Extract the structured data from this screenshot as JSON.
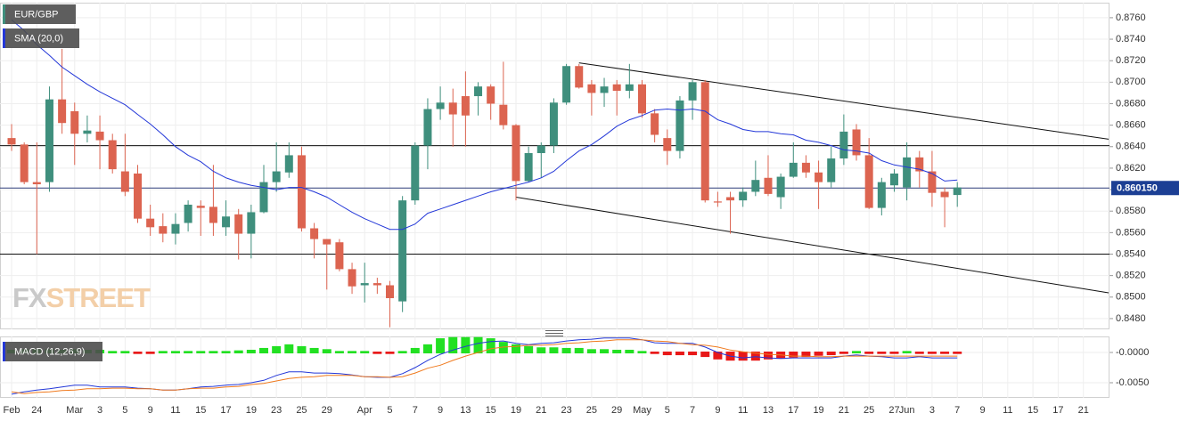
{
  "chart_data": [
    {
      "type": "candlestick",
      "title": "EUR/GBP",
      "categories": [
        "Feb",
        null,
        "24",
        null,
        null,
        "Mar",
        null,
        "3",
        null,
        "5",
        null,
        "9",
        null,
        "11",
        null,
        "15",
        null,
        "17",
        null,
        "19",
        null,
        "23",
        null,
        "25",
        null,
        "29",
        null,
        null,
        "Apr",
        null,
        "5",
        null,
        "7",
        null,
        "9",
        null,
        "13",
        null,
        "15",
        null,
        "19",
        null,
        "21",
        null,
        "23",
        null,
        "25",
        null,
        "29",
        null,
        "May",
        null,
        "5",
        null,
        "7",
        null,
        "9",
        null,
        "11",
        null,
        "13",
        null,
        "17",
        null,
        "19",
        null,
        "21",
        null,
        "25",
        null,
        "27",
        "Jun",
        null,
        "3",
        null,
        "7",
        null,
        "9",
        null,
        "11",
        null,
        "15",
        null,
        "17",
        null,
        "21"
      ],
      "xlim": [
        -0.92,
        87.07
      ],
      "open": [
        0.8648,
        0.8642,
        0.8607,
        0.8607,
        0.8684,
        0.8673,
        0.8652,
        0.8654,
        0.8646,
        0.8617,
        0.8615,
        0.8573,
        0.8566,
        0.8559,
        0.8569,
        0.8585,
        0.8584,
        0.8565,
        0.8577,
        0.8559,
        0.8579,
        0.8607,
        0.8616,
        0.8632,
        0.8564,
        0.8554,
        0.8551,
        0.8526,
        0.8511,
        0.8513,
        0.8511,
        0.8496,
        0.859,
        0.8641,
        0.8675,
        0.8681,
        0.8687,
        0.8687,
        0.8696,
        0.8679,
        0.866,
        0.8608,
        0.8634,
        0.8641,
        0.8681,
        0.8715,
        0.8698,
        0.869,
        0.8698,
        0.8692,
        0.8698,
        0.8671,
        0.8648,
        0.8636,
        0.8683,
        0.87,
        0.8589,
        0.8593,
        0.859,
        0.8598,
        0.8611,
        0.8593,
        0.8612,
        0.8625,
        0.8616,
        0.8607,
        0.8629,
        0.8656,
        0.8632,
        0.8583,
        0.8604,
        0.8602,
        0.863,
        0.8617,
        0.8598,
        0.8595,
        null,
        null,
        null,
        null,
        null,
        null,
        null,
        null,
        null,
        null
      ],
      "high": [
        0.8661,
        0.8644,
        0.8644,
        0.8696,
        0.8731,
        0.8681,
        0.8669,
        0.8669,
        0.8652,
        0.8652,
        0.8623,
        0.8586,
        0.8578,
        0.8578,
        0.859,
        0.859,
        0.8623,
        0.859,
        0.8582,
        0.8586,
        0.8623,
        0.8644,
        0.8644,
        0.864,
        0.8569,
        0.8554,
        0.8554,
        0.8532,
        0.8532,
        0.8518,
        0.8515,
        0.8594,
        0.8644,
        0.8685,
        0.8696,
        0.8694,
        0.871,
        0.87,
        0.8698,
        0.8719,
        0.8661,
        0.864,
        0.8644,
        0.8685,
        0.8717,
        0.8717,
        0.8702,
        0.8704,
        0.8702,
        0.8717,
        0.8702,
        0.8675,
        0.8656,
        0.8687,
        0.8702,
        0.8702,
        0.8598,
        0.8598,
        0.8602,
        0.8627,
        0.8632,
        0.8615,
        0.8644,
        0.8632,
        0.8627,
        0.864,
        0.867,
        0.8661,
        0.8648,
        0.8611,
        0.8619,
        0.8644,
        0.8636,
        0.8636,
        0.8602,
        0.8607,
        null,
        null,
        null,
        null,
        null,
        null,
        null,
        null,
        null,
        null
      ],
      "low": [
        0.8636,
        0.8605,
        0.854,
        0.8598,
        0.8652,
        0.8623,
        0.8644,
        0.8619,
        0.8615,
        0.8594,
        0.8569,
        0.8557,
        0.8551,
        0.8549,
        0.8561,
        0.8557,
        0.8557,
        0.8557,
        0.8535,
        0.8536,
        0.8578,
        0.8598,
        0.8611,
        0.8561,
        0.8536,
        0.8507,
        0.8524,
        0.8503,
        0.8495,
        0.8503,
        0.8472,
        0.8486,
        0.8586,
        0.8619,
        0.8665,
        0.864,
        0.864,
        0.8669,
        0.8665,
        0.8656,
        0.859,
        0.8607,
        0.8611,
        0.8634,
        0.8679,
        0.8694,
        0.8669,
        0.8677,
        0.8669,
        0.8685,
        0.8667,
        0.8644,
        0.8623,
        0.8629,
        0.8665,
        0.8588,
        0.8584,
        0.8559,
        0.8584,
        0.8594,
        0.8594,
        0.8582,
        0.8611,
        0.8611,
        0.8582,
        0.8602,
        0.8623,
        0.8627,
        0.8582,
        0.8576,
        0.8598,
        0.859,
        0.8602,
        0.8584,
        0.8565,
        0.8584,
        null,
        null,
        null,
        null,
        null,
        null,
        null,
        null,
        null,
        null
      ],
      "close": [
        0.8642,
        0.8607,
        0.8605,
        0.8684,
        0.8662,
        0.8652,
        0.8655,
        0.8646,
        0.8619,
        0.8598,
        0.8573,
        0.8565,
        0.8559,
        0.8568,
        0.8586,
        0.8583,
        0.8569,
        0.8575,
        0.8559,
        0.8579,
        0.8607,
        0.8617,
        0.8632,
        0.8564,
        0.8554,
        0.8549,
        0.8526,
        0.851,
        0.8513,
        0.8511,
        0.8499,
        0.859,
        0.8641,
        0.8675,
        0.8681,
        0.867,
        0.8669,
        0.8696,
        0.868,
        0.866,
        0.8608,
        0.8634,
        0.8641,
        0.8681,
        0.8715,
        0.8695,
        0.869,
        0.8696,
        0.8692,
        0.8698,
        0.8671,
        0.8651,
        0.8636,
        0.8683,
        0.87,
        0.859,
        0.8588,
        0.859,
        0.8598,
        0.8609,
        0.8596,
        0.8612,
        0.8625,
        0.8616,
        0.8607,
        0.8629,
        0.8654,
        0.8632,
        0.8583,
        0.8607,
        0.8615,
        0.863,
        0.8617,
        0.8597,
        0.8593,
        0.8602,
        null,
        null,
        null,
        null,
        null,
        null,
        null,
        null,
        null,
        null
      ],
      "up_color": "#3f8f7d",
      "down_color": "#dc6450",
      "series": [
        {
          "name": "SMA (20,0)",
          "color": "#2438d8",
          "values": [
            0.8758,
            0.8748,
            0.8735,
            0.8725,
            0.8714,
            0.8706,
            0.8698,
            0.8691,
            0.8685,
            0.8679,
            0.867,
            0.8661,
            0.8651,
            0.864,
            0.8632,
            0.8626,
            0.8617,
            0.8611,
            0.8607,
            0.8604,
            0.8602,
            0.86,
            0.8602,
            0.8602,
            0.8598,
            0.8593,
            0.8586,
            0.8579,
            0.8573,
            0.8568,
            0.8563,
            0.8563,
            0.8568,
            0.8578,
            0.8582,
            0.8586,
            0.859,
            0.8594,
            0.8598,
            0.8601,
            0.8604,
            0.8607,
            0.8611,
            0.8617,
            0.8627,
            0.8636,
            0.8642,
            0.865,
            0.8659,
            0.8665,
            0.8669,
            0.8674,
            0.8675,
            0.8674,
            0.8675,
            0.8673,
            0.8665,
            0.8661,
            0.8656,
            0.8654,
            0.8654,
            0.8652,
            0.8651,
            0.8646,
            0.8644,
            0.8641,
            0.8637,
            0.8636,
            0.8634,
            0.8627,
            0.8623,
            0.8621,
            0.8619,
            0.8615,
            0.8608,
            0.8609,
            null,
            null,
            null,
            null,
            null,
            null,
            null,
            null,
            null,
            null
          ]
        }
      ],
      "ylim": [
        0.847,
        0.8774
      ],
      "yticks": [
        {
          "value": 0.876,
          "label": "0.8760"
        },
        {
          "value": 0.874,
          "label": "0.8740"
        },
        {
          "value": 0.872,
          "label": "0.8720"
        },
        {
          "value": 0.87,
          "label": "0.8700"
        },
        {
          "value": 0.868,
          "label": "0.8680"
        },
        {
          "value": 0.866,
          "label": "0.8660"
        },
        {
          "value": 0.864,
          "label": "0.8640"
        },
        {
          "value": 0.862,
          "label": "0.8620"
        },
        {
          "value": 0.86,
          "label": "0.8600"
        },
        {
          "value": 0.858,
          "label": "0.8580"
        },
        {
          "value": 0.856,
          "label": "0.8560"
        },
        {
          "value": 0.854,
          "label": "0.8540"
        },
        {
          "value": 0.852,
          "label": "0.8520"
        },
        {
          "value": 0.85,
          "label": "0.8500"
        },
        {
          "value": 0.848,
          "label": "0.8480"
        }
      ],
      "grid": true,
      "levels": [
        0.8641,
        0.854
      ],
      "trendlines": [
        {
          "x": [
            45,
            87
          ],
          "y": [
            0.8718,
            0.8647
          ]
        },
        {
          "x": [
            40,
            87
          ],
          "y": [
            0.8593,
            0.8504
          ]
        }
      ],
      "last_price": {
        "value": 0.86015,
        "label": "0.860150"
      },
      "watermark": [
        "FX",
        "STREET"
      ]
    },
    {
      "type": "macd",
      "title": "MACD (12,26,9)",
      "series": [
        {
          "color": "#2438d8",
          "values": [
            -0.0069,
            -0.0065,
            -0.0062,
            -0.006,
            -0.0057,
            -0.0054,
            -0.0054,
            -0.0057,
            -0.0057,
            -0.0057,
            -0.0059,
            -0.006,
            -0.0062,
            -0.0062,
            -0.006,
            -0.0057,
            -0.0056,
            -0.0054,
            -0.0053,
            -0.005,
            -0.0046,
            -0.0038,
            -0.0032,
            -0.0032,
            -0.0034,
            -0.0034,
            -0.0035,
            -0.0037,
            -0.004,
            -0.0041,
            -0.0041,
            -0.0035,
            -0.0025,
            -0.0013,
            -0.0003,
            0.0004,
            0.001,
            0.0015,
            0.0018,
            0.0019,
            0.0015,
            0.0013,
            0.0015,
            0.0016,
            0.0019,
            0.0021,
            0.0022,
            0.0024,
            0.0024,
            0.0024,
            0.0021,
            0.0016,
            0.0015,
            0.0015,
            0.0015,
            0.0009,
            0,
            -0.0006,
            -0.0009,
            -0.0007,
            -0.0009,
            -0.001,
            -0.0009,
            -0.0009,
            -0.0009,
            -0.0009,
            -0.0006,
            -0.0004,
            -0.0006,
            -0.0007,
            -0.0009,
            -0.0009,
            -0.0007,
            -0.0009,
            -0.0009,
            -0.0009,
            null,
            null,
            null,
            null,
            null,
            null,
            null,
            null,
            null,
            null
          ]
        },
        {
          "color": "#f07a1e",
          "values": [
            -0.0065,
            -0.0068,
            -0.0066,
            -0.0065,
            -0.0063,
            -0.0062,
            -0.006,
            -0.006,
            -0.0059,
            -0.0059,
            -0.006,
            -0.006,
            -0.0062,
            -0.0062,
            -0.006,
            -0.0059,
            -0.0059,
            -0.0057,
            -0.0056,
            -0.0053,
            -0.0051,
            -0.0047,
            -0.0043,
            -0.0041,
            -0.004,
            -0.0038,
            -0.0038,
            -0.0038,
            -0.004,
            -0.004,
            -0.0041,
            -0.004,
            -0.0034,
            -0.0026,
            -0.0021,
            -0.0013,
            -0.0006,
            0,
            0.0006,
            0.0009,
            0.001,
            0.0012,
            0.0012,
            0.0013,
            0.0015,
            0.0016,
            0.0018,
            0.0019,
            0.0021,
            0.0021,
            0.0021,
            0.0019,
            0.0018,
            0.0015,
            0.0013,
            0.0012,
            0.0009,
            0.0004,
            0.0001,
            -0.0001,
            -0.0003,
            -0.0004,
            -0.0006,
            -0.0006,
            -0.0007,
            -0.0007,
            -0.0006,
            -0.0006,
            -0.0006,
            -0.0006,
            -0.0006,
            -0.0006,
            -0.0006,
            -0.0006,
            -0.0006,
            -0.0006,
            null,
            null,
            null,
            null,
            null,
            null,
            null,
            null,
            null,
            null
          ]
        }
      ],
      "histogram": {
        "up_color": "#22e022",
        "down_color": "#e81818",
        "values": [
          0.0003,
          0.0004,
          0.0004,
          0.0004,
          0.0003,
          0.0004,
          0.0003,
          0.0003,
          0.0001,
          0.0001,
          -0.0001,
          -0.0001,
          0.0001,
          0.0001,
          0.0001,
          0.0001,
          0.0001,
          0.0001,
          0.0002,
          0.0003,
          0.0006,
          0.0009,
          0.0012,
          0.0009,
          0.0006,
          0.0004,
          0.0001,
          0.0001,
          0.0001,
          -0.0001,
          -0.0001,
          0.0001,
          0.0006,
          0.0012,
          0.0022,
          0.0024,
          0.0024,
          0.0024,
          0.0022,
          0.0016,
          0.0012,
          0.0009,
          0.0007,
          0.0007,
          0.0006,
          0.0006,
          0.0004,
          0.0004,
          0.0003,
          0.0003,
          0.0001,
          -0.0001,
          -0.0003,
          -0.0003,
          -0.0003,
          -0.0006,
          -0.001,
          -0.0012,
          -0.0012,
          -0.0012,
          -0.001,
          -0.0009,
          -0.0007,
          -0.0006,
          -0.0004,
          -0.0003,
          -0.0001,
          0.0001,
          -0.0001,
          -0.0001,
          -0.0001,
          0.0001,
          -0.0001,
          -0.0001,
          -0.0001,
          -0.0001,
          null,
          null,
          null,
          null,
          null,
          null,
          null,
          null,
          null,
          null
        ]
      },
      "ylim": [
        -0.0075,
        0.00265
      ],
      "yticks": [
        {
          "value": 0,
          "label": "-0.0000"
        },
        {
          "value": -0.005,
          "label": "-0.0050"
        }
      ],
      "grid": true
    }
  ]
}
